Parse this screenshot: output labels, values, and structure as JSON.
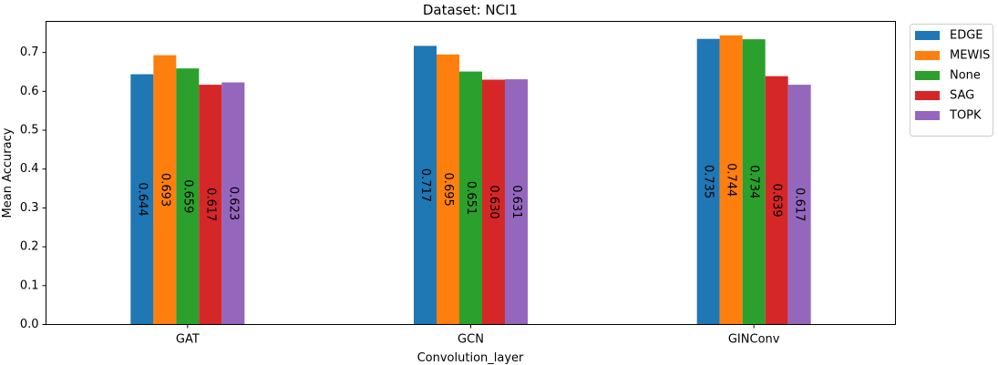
{
  "chart_data": {
    "type": "bar",
    "title": "Dataset: NCI1",
    "xlabel": "Convolution_layer",
    "ylabel": "Mean Accuracy",
    "categories": [
      "GAT",
      "GCN",
      "GINConv"
    ],
    "ylim": [
      0,
      0.78
    ],
    "yticks": [
      "0.0",
      "0.1",
      "0.2",
      "0.3",
      "0.4",
      "0.5",
      "0.6",
      "0.7"
    ],
    "grid": false,
    "legend_position": "outside-top-right",
    "series": [
      {
        "name": "EDGE",
        "color": "#1f77b4",
        "values": [
          0.644,
          0.717,
          0.735
        ],
        "labels": [
          "0.644",
          "0.717",
          "0.735"
        ]
      },
      {
        "name": "MEWIS",
        "color": "#ff7f0e",
        "values": [
          0.693,
          0.695,
          0.744
        ],
        "labels": [
          "0.693",
          "0.695",
          "0.744"
        ]
      },
      {
        "name": "None",
        "color": "#2ca02c",
        "values": [
          0.659,
          0.651,
          0.734
        ],
        "labels": [
          "0.659",
          "0.651",
          "0.734"
        ]
      },
      {
        "name": "SAG",
        "color": "#d62728",
        "values": [
          0.617,
          0.63,
          0.639
        ],
        "labels": [
          "0.617",
          "0.630",
          "0.639"
        ]
      },
      {
        "name": "TOPK",
        "color": "#9467bd",
        "values": [
          0.623,
          0.631,
          0.617
        ],
        "labels": [
          "0.623",
          "0.631",
          "0.617"
        ]
      }
    ]
  }
}
